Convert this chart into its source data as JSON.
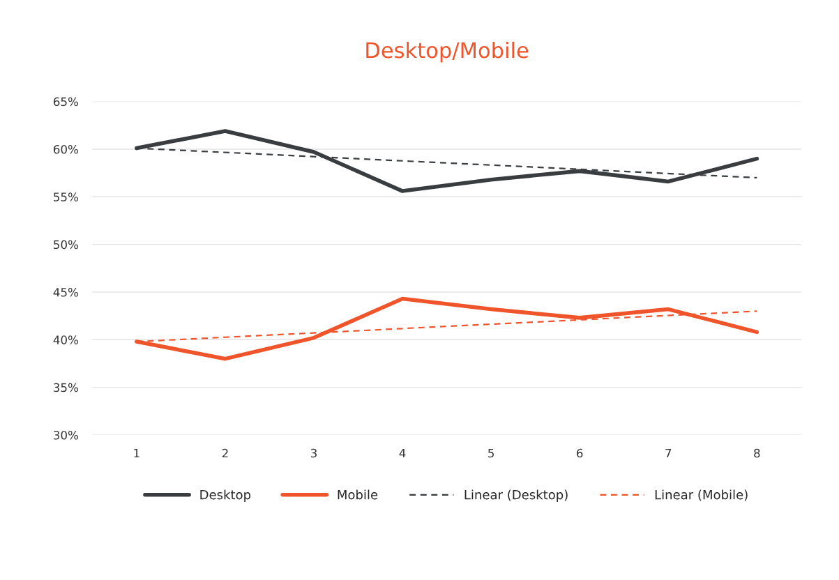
{
  "chart_data": {
    "type": "line",
    "title": "Desktop/Mobile",
    "categories": [
      "1",
      "2",
      "3",
      "4",
      "5",
      "6",
      "7",
      "8"
    ],
    "series": [
      {
        "name": "Desktop",
        "color": "#3a3d40",
        "values": [
          60.1,
          61.9,
          59.7,
          55.6,
          56.8,
          57.7,
          56.6,
          59.0
        ]
      },
      {
        "name": "Mobile",
        "color": "#f0542b",
        "values": [
          39.8,
          38.0,
          40.2,
          44.3,
          43.2,
          42.3,
          43.2,
          40.8
        ]
      },
      {
        "name": "Linear (Desktop)",
        "color": "#3a3d40",
        "line_style": "dashed",
        "x": [
          "1",
          "8"
        ],
        "values": [
          60.1,
          57.0
        ]
      },
      {
        "name": "Linear (Mobile)",
        "color": "#f0542b",
        "line_style": "dashed",
        "x": [
          "1",
          "8"
        ],
        "values": [
          39.8,
          43.0
        ]
      }
    ],
    "ylim": [
      30,
      65
    ],
    "yticks": [
      {
        "value": 30,
        "label": "30%"
      },
      {
        "value": 35,
        "label": "35%"
      },
      {
        "value": 40,
        "label": "40%"
      },
      {
        "value": 45,
        "label": "45%"
      },
      {
        "value": 50,
        "label": "50%"
      },
      {
        "value": 55,
        "label": "55%"
      },
      {
        "value": 60,
        "label": "60%"
      },
      {
        "value": 65,
        "label": "65%"
      }
    ],
    "grid": "y",
    "legend": "bottom",
    "marker": "none",
    "line_style": "solid"
  }
}
